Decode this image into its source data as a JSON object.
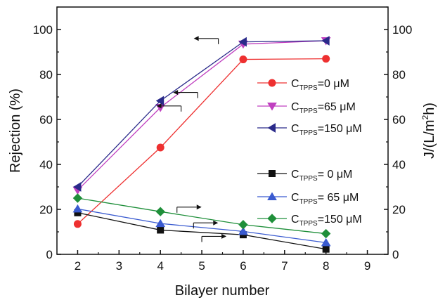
{
  "chart_data": {
    "type": "line",
    "title": "",
    "xlabel": "Bilayer number",
    "ylabel_left": "Rejection (%)",
    "ylabel_right": "J/(L/m²h)",
    "ylabel_right_parts": {
      "base": "J/(L/m",
      "sup": "2",
      "tail": "h)"
    },
    "xlim": [
      1.5,
      9.5
    ],
    "ylim_left": [
      0,
      110
    ],
    "ylim_right": [
      0,
      110
    ],
    "x_ticks": [
      "2",
      "3",
      "4",
      "5",
      "6",
      "7",
      "8",
      "9"
    ],
    "y_left_ticks": [
      "0",
      "20",
      "40",
      "60",
      "80",
      "100"
    ],
    "y_right_ticks": [
      "0",
      "20",
      "40",
      "60",
      "80",
      "100"
    ],
    "grid": false,
    "legend_placement": "right",
    "series": [
      {
        "name": "CTPPS=0 μM",
        "legend": {
          "pre": "C",
          "sub": "TPPS",
          "post": "=0 μM"
        },
        "axis": "left",
        "marker": "circle",
        "color": "#ee3030",
        "x": [
          2,
          4,
          6,
          8
        ],
        "values": [
          13.5,
          47.5,
          86.7,
          87
        ]
      },
      {
        "name": "CTPPS=65 μM",
        "legend": {
          "pre": "C",
          "sub": "TPPS",
          "post": "=65 μM"
        },
        "axis": "left",
        "marker": "triangle-down",
        "color": "#c040c0",
        "x": [
          2,
          4,
          6,
          8
        ],
        "values": [
          28.5,
          65.3,
          93.5,
          95
        ]
      },
      {
        "name": "CTPPS=150 μM",
        "legend": {
          "pre": "C",
          "sub": "TPPS",
          "post": "=150 μM"
        },
        "axis": "left",
        "marker": "triangle-left",
        "color": "#2a2a8a",
        "x": [
          2,
          4,
          6,
          8
        ],
        "values": [
          30,
          68.3,
          94.5,
          95
        ]
      },
      {
        "name": "CTPPS= 0 μM",
        "legend": {
          "pre": "C",
          "sub": "TPPS",
          "post": "= 0 μM"
        },
        "axis": "right",
        "marker": "square",
        "color": "#111111",
        "x": [
          2,
          4,
          6,
          8
        ],
        "values": [
          18.5,
          10.8,
          8.7,
          2.3
        ]
      },
      {
        "name": "CTPPS= 65 μM",
        "legend": {
          "pre": "C",
          "sub": "TPPS",
          "post": "= 65 μM"
        },
        "axis": "right",
        "marker": "triangle-up",
        "color": "#3a5bd0",
        "x": [
          2,
          4,
          6,
          8
        ],
        "values": [
          20.2,
          13.7,
          10.2,
          5.2
        ]
      },
      {
        "name": "CTPPS=150 μM",
        "legend": {
          "pre": "C",
          "sub": "TPPS",
          "post": "=150 μM"
        },
        "axis": "right",
        "marker": "diamond",
        "color": "#1f8f3a",
        "x": [
          2,
          4,
          6,
          8
        ],
        "values": [
          25,
          19,
          13.2,
          9.2
        ]
      }
    ],
    "annotations": [
      {
        "kind": "arrow-to-left-axis",
        "at_x": 5.4,
        "at_y": 96
      },
      {
        "kind": "arrow-to-left-axis",
        "at_x": 4.9,
        "at_y": 72
      },
      {
        "kind": "arrow-to-left-axis",
        "at_x": 4.5,
        "at_y": 66
      },
      {
        "kind": "arrow-to-right-axis",
        "at_x": 4.4,
        "at_y": 21
      },
      {
        "kind": "arrow-to-right-axis",
        "at_x": 4.8,
        "at_y": 14
      },
      {
        "kind": "arrow-to-right-axis",
        "at_x": 5.0,
        "at_y": 8
      }
    ]
  }
}
